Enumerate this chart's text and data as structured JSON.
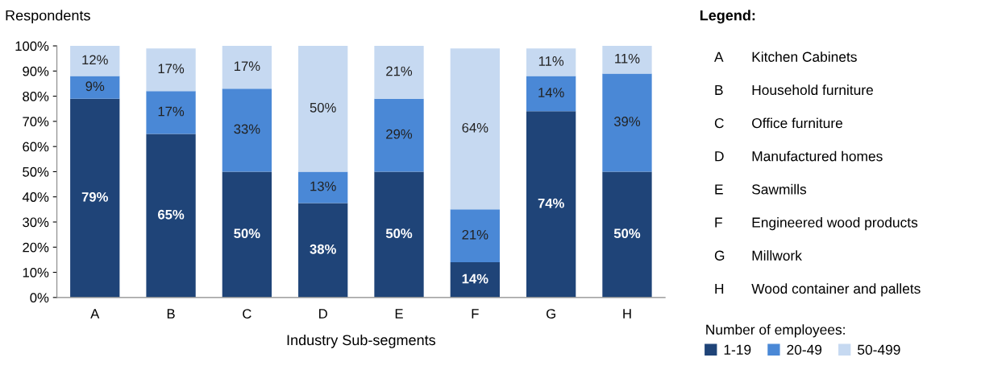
{
  "chart_data": {
    "type": "bar",
    "stacked": true,
    "ylabel": "Respondents",
    "xlabel": "Industry Sub-segments",
    "legend_title": "Number of employees:",
    "legend": "bottom right",
    "categories": [
      "A",
      "B",
      "C",
      "D",
      "E",
      "F",
      "G",
      "H"
    ],
    "ylim": [
      0,
      100
    ],
    "yticks": [
      {
        "value": 0,
        "label": "0%"
      },
      {
        "value": 10,
        "label": "10%"
      },
      {
        "value": 20,
        "label": "20%"
      },
      {
        "value": 30,
        "label": "30%"
      },
      {
        "value": 40,
        "label": "40%"
      },
      {
        "value": 50,
        "label": "50%"
      },
      {
        "value": 60,
        "label": "60%"
      },
      {
        "value": 70,
        "label": "70%"
      },
      {
        "value": 80,
        "label": "80%"
      },
      {
        "value": 90,
        "label": "90%"
      },
      {
        "value": 100,
        "label": "100%"
      }
    ],
    "series": [
      {
        "name": "1-19",
        "color": "#1f4478",
        "values": [
          79,
          65,
          50,
          37.5,
          50,
          14,
          74,
          50
        ],
        "value_labels": [
          "79%",
          "65%",
          "50%",
          "38%",
          "50%",
          "14%",
          "74%",
          "50%"
        ]
      },
      {
        "name": "20-49",
        "color": "#4a88d6",
        "values": [
          9,
          17,
          33,
          12.5,
          29,
          21,
          14,
          39
        ],
        "value_labels": [
          "9%",
          "17%",
          "33%",
          "13%",
          "29%",
          "21%",
          "14%",
          "39%"
        ]
      },
      {
        "name": "50-499",
        "color": "#c6d9f1",
        "values": [
          12,
          17,
          17,
          50,
          21,
          64,
          11,
          11
        ],
        "value_labels": [
          "12%",
          "17%",
          "17%",
          "50%",
          "21%",
          "64%",
          "11%",
          "11%"
        ]
      }
    ],
    "annotations": [
      "Legend:",
      "A",
      "Kitchen Cabinets",
      "B",
      "Household furniture",
      "C",
      "Office furniture",
      "D",
      "Manufactured homes",
      "E",
      "Sawmills",
      "F",
      "Engineered wood products",
      "G",
      "Millwork",
      "H",
      "Wood container and pallets"
    ],
    "grid": false
  }
}
